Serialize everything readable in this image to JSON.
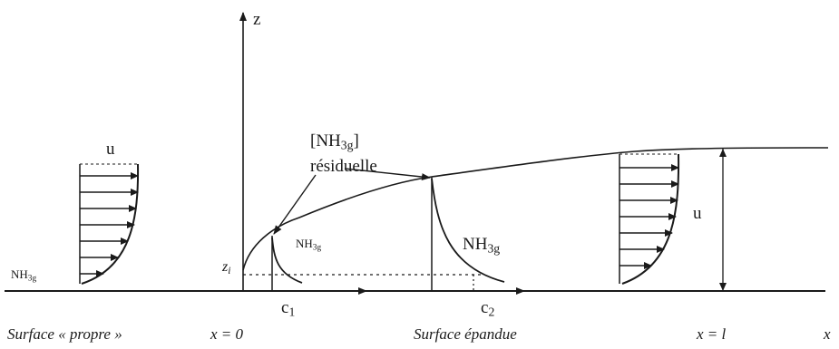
{
  "labels": {
    "z_axis": "z",
    "u_left": "u",
    "u_right": "u",
    "nh3_concentration": "[NH3g]",
    "residuelle": "résiduelle",
    "nh3_left": "NH3g",
    "nh3_mid_small": "NH3g",
    "nh3_mid_large": "NH3g",
    "z_i": "zi",
    "c1": "c1",
    "c2": "c2"
  },
  "captions": {
    "surface_propre": "Surface « propre »",
    "x_zero": "x = 0",
    "surface_epandue": "Surface épandue",
    "x_l": "x = l",
    "x_axis": "x"
  },
  "colors": {
    "ink": "#1a1a1a",
    "background": "#ffffff"
  }
}
